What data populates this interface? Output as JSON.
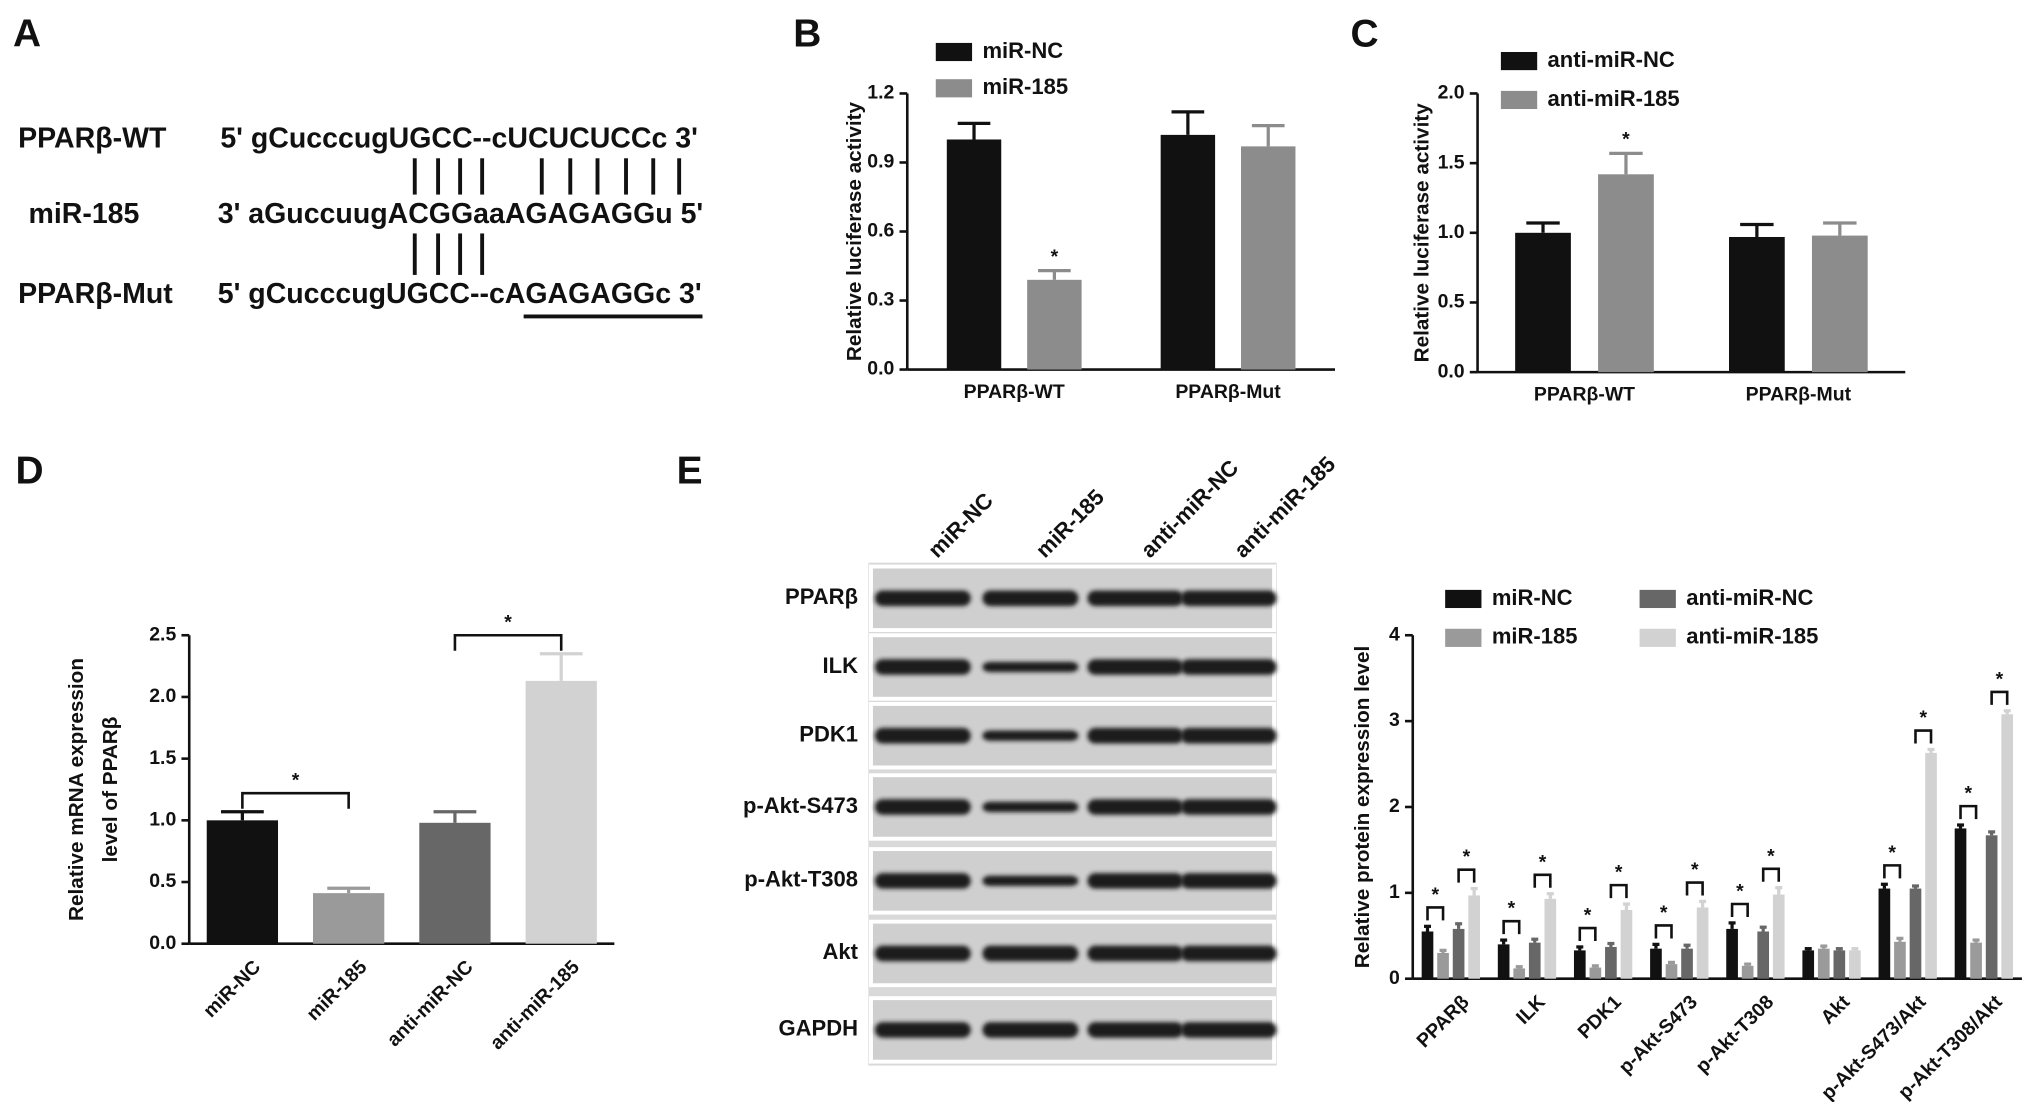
{
  "panel_labels": [
    "A",
    "B",
    "C",
    "D",
    "E"
  ],
  "sequence_alignment": {
    "rows": [
      {
        "name": "PPARβ-WT",
        "sequence": "5' gCucccugUGCC--cUCUCUCCc 3'"
      },
      {
        "name": "miR-185",
        "sequence": "3' aGuccuugACGGaaAGAGAGGu 5'"
      },
      {
        "name": "PPARβ-Mut",
        "sequence": "5' gCucccugUGCC--cAGAGAGGc 3'"
      }
    ]
  },
  "blot": {
    "lanes": [
      "miR-NC",
      "miR-185",
      "anti-miR-NC",
      "anti-miR-185"
    ],
    "rows": [
      "PPARβ",
      "ILK",
      "PDK1",
      "p-Akt-S473",
      "p-Akt-T308",
      "Akt",
      "GAPDH"
    ]
  },
  "chart_data": [
    {
      "type": "bar",
      "ylabel": "Relative luciferase activity",
      "categories": [
        "PPARβ-WT",
        "PPARβ-Mut"
      ],
      "series": [
        {
          "name": "miR-NC",
          "color": "#111111",
          "values": [
            1.0,
            1.02
          ],
          "errors": [
            0.07,
            0.1
          ]
        },
        {
          "name": "miR-185",
          "color": "#8c8c8c",
          "values": [
            0.39,
            0.97
          ],
          "errors": [
            0.04,
            0.09
          ]
        }
      ],
      "annotations": [
        {
          "text": "*",
          "series": 1,
          "index": 0
        }
      ],
      "ylim": [
        0,
        1.2
      ],
      "yticks": [
        {
          "value": 0,
          "label": "0.0"
        },
        0.3,
        0.6,
        0.9,
        1.2
      ]
    },
    {
      "type": "bar",
      "ylabel": "Relative luciferase activity",
      "categories": [
        "PPARβ-WT",
        "PPARβ-Mut"
      ],
      "series": [
        {
          "name": "anti-miR-NC",
          "color": "#111111",
          "values": [
            1.0,
            0.97
          ],
          "errors": [
            0.07,
            0.09
          ]
        },
        {
          "name": "anti-miR-185",
          "color": "#8c8c8c",
          "values": [
            1.42,
            0.98
          ],
          "errors": [
            0.15,
            0.09
          ]
        }
      ],
      "annotations": [
        {
          "text": "*",
          "series": 1,
          "index": 0
        }
      ],
      "ylim": [
        0,
        2.0
      ],
      "yticks": [
        {
          "value": 0,
          "label": "0.0"
        },
        0.5,
        {
          "value": 1,
          "label": "1.0"
        },
        1.5,
        {
          "value": 2,
          "label": "2.0"
        }
      ]
    },
    {
      "type": "bar",
      "ylabel": [
        "Relative mRNA expression",
        "level of PPARβ"
      ],
      "categories": [
        "miR-NC",
        "miR-185",
        "anti-miR-NC",
        "anti-miR-185"
      ],
      "values": [
        1.0,
        0.41,
        0.98,
        2.13
      ],
      "errors": [
        0.07,
        0.04,
        0.09,
        0.22
      ],
      "colors": [
        "#111111",
        "#9a9a9a",
        "#676767",
        "#d2d2d2"
      ],
      "brackets": [
        {
          "from": 0,
          "to": 1,
          "text": "*"
        },
        {
          "from": 2,
          "to": 3,
          "text": "*"
        }
      ],
      "ylim": [
        0,
        2.5
      ],
      "yticks": [
        {
          "value": 0,
          "label": "0.0"
        },
        0.5,
        {
          "value": 1,
          "label": "1.0"
        },
        1.5,
        {
          "value": 2,
          "label": "2.0"
        },
        2.5
      ]
    },
    {
      "type": "bar",
      "ylabel": "Relative protein expression level",
      "categories": [
        "PPARβ",
        "ILK",
        "PDK1",
        "p-Akt-S473",
        "p-Akt-T308",
        "Akt",
        "p-Akt-S473/Akt",
        "p-Akt-T308/Akt"
      ],
      "series": [
        {
          "name": "miR-NC",
          "color": "#111111",
          "values": [
            0.55,
            0.4,
            0.33,
            0.35,
            0.58,
            0.33,
            1.05,
            1.75
          ],
          "errors": [
            0.06,
            0.05,
            0.04,
            0.05,
            0.07,
            0.02,
            0.05,
            0.04
          ]
        },
        {
          "name": "miR-185",
          "color": "#9a9a9a",
          "values": [
            0.3,
            0.12,
            0.13,
            0.17,
            0.15,
            0.35,
            0.43,
            0.42
          ],
          "errors": [
            0.03,
            0.02,
            0.02,
            0.02,
            0.02,
            0.03,
            0.04,
            0.03
          ]
        },
        {
          "name": "anti-miR-NC",
          "color": "#676767",
          "values": [
            0.58,
            0.42,
            0.37,
            0.35,
            0.55,
            0.33,
            1.05,
            1.67
          ],
          "errors": [
            0.06,
            0.04,
            0.04,
            0.04,
            0.05,
            0.02,
            0.03,
            0.04
          ]
        },
        {
          "name": "anti-miR-185",
          "color": "#d2d2d2",
          "values": [
            0.97,
            0.93,
            0.8,
            0.83,
            0.98,
            0.33,
            2.63,
            3.08
          ],
          "errors": [
            0.08,
            0.06,
            0.07,
            0.07,
            0.08,
            0.02,
            0.04,
            0.04
          ]
        }
      ],
      "brackets": [
        {
          "category": 0,
          "from": 0,
          "to": 1,
          "text": "*"
        },
        {
          "category": 0,
          "from": 2,
          "to": 3,
          "text": "*"
        },
        {
          "category": 1,
          "from": 0,
          "to": 1,
          "text": "*"
        },
        {
          "category": 1,
          "from": 2,
          "to": 3,
          "text": "*"
        },
        {
          "category": 2,
          "from": 0,
          "to": 1,
          "text": "*"
        },
        {
          "category": 2,
          "from": 2,
          "to": 3,
          "text": "*"
        },
        {
          "category": 3,
          "from": 0,
          "to": 1,
          "text": "*"
        },
        {
          "category": 3,
          "from": 2,
          "to": 3,
          "text": "*"
        },
        {
          "category": 4,
          "from": 0,
          "to": 1,
          "text": "*"
        },
        {
          "category": 4,
          "from": 2,
          "to": 3,
          "text": "*"
        },
        {
          "category": 6,
          "from": 0,
          "to": 1,
          "text": "*"
        },
        {
          "category": 6,
          "from": 2,
          "to": 3,
          "text": "*"
        },
        {
          "category": 7,
          "from": 0,
          "to": 1,
          "text": "*"
        },
        {
          "category": 7,
          "from": 2,
          "to": 3,
          "text": "*"
        }
      ],
      "ylim": [
        0,
        4
      ],
      "yticks": [
        0,
        1,
        2,
        3,
        4
      ]
    }
  ]
}
